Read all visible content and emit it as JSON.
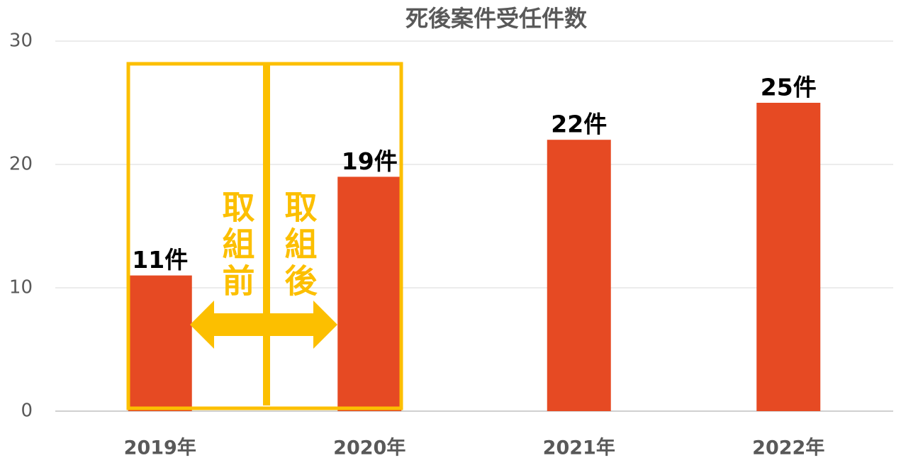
{
  "chart_data": {
    "type": "bar",
    "title": "死後案件受任件数",
    "categories": [
      "2019年",
      "2020年",
      "2021年",
      "2022年"
    ],
    "values": [
      11,
      19,
      22,
      25
    ],
    "value_labels": [
      "11件",
      "19件",
      "22件",
      "25件"
    ],
    "color": "#e64a23",
    "ylim": [
      0,
      30
    ],
    "yticks": [
      0,
      10,
      20,
      30
    ],
    "grid": true,
    "annotations": [
      "取組前",
      "取組後"
    ]
  }
}
